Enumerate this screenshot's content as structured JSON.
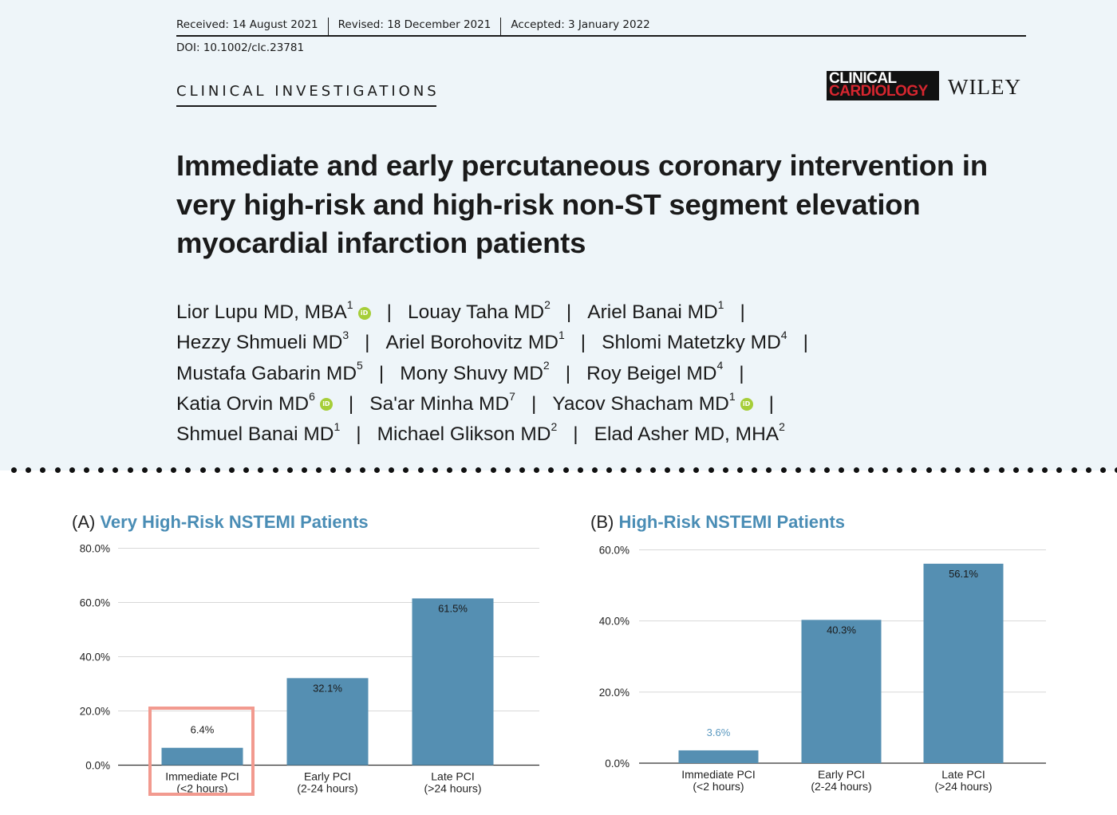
{
  "header": {
    "received": "Received: 14 August 2021",
    "revised": "Revised: 18 December 2021",
    "accepted": "Accepted: 3 January 2022",
    "doi": "DOI: 10.1002/clc.23781",
    "section": "CLINICAL INVESTIGATIONS",
    "logo_line1": "CLINICAL",
    "logo_line2": "CARDIOLOGY",
    "publisher": "WILEY"
  },
  "article": {
    "title": "Immediate and early percutaneous coronary intervention in very high-risk and high-risk non-ST segment elevation myocardial infarction patients",
    "author_rows": [
      [
        {
          "name": "Lior Lupu MD, MBA",
          "sup": "1",
          "orcid": true
        },
        {
          "name": "Louay Taha MD",
          "sup": "2",
          "orcid": false
        },
        {
          "name": "Ariel Banai MD",
          "sup": "1",
          "orcid": false
        }
      ],
      [
        {
          "name": "Hezzy Shmueli MD",
          "sup": "3",
          "orcid": false
        },
        {
          "name": "Ariel Borohovitz MD",
          "sup": "1",
          "orcid": false
        },
        {
          "name": "Shlomi Matetzky MD",
          "sup": "4",
          "orcid": false
        }
      ],
      [
        {
          "name": "Mustafa Gabarin MD",
          "sup": "5",
          "orcid": false
        },
        {
          "name": "Mony Shuvy MD",
          "sup": "2",
          "orcid": false
        },
        {
          "name": "Roy Beigel MD",
          "sup": "4",
          "orcid": false
        }
      ],
      [
        {
          "name": "Katia Orvin MD",
          "sup": "6",
          "orcid": true
        },
        {
          "name": "Sa'ar Minha MD",
          "sup": "7",
          "orcid": false
        },
        {
          "name": "Yacov Shacham MD",
          "sup": "1",
          "orcid": true
        }
      ],
      [
        {
          "name": "Shmuel Banai MD",
          "sup": "1",
          "orcid": false
        },
        {
          "name": "Michael Glikson MD",
          "sup": "2",
          "orcid": false
        },
        {
          "name": "Elad Asher MD, MHA",
          "sup": "2",
          "orcid": false
        }
      ]
    ],
    "separator": "|",
    "orcid_text": "iD"
  },
  "chart_data": [
    {
      "type": "bar",
      "panel": "(A)",
      "title": "Very High-Risk NSTEMI Patients",
      "categories": [
        [
          "Immediate PCI",
          "(<2 hours)"
        ],
        [
          "Early PCI",
          "(2-24 hours)"
        ],
        [
          "Late PCI",
          "(>24 hours)"
        ]
      ],
      "values": [
        6.4,
        32.1,
        61.5
      ],
      "value_labels": [
        "6.4%",
        "32.1%",
        "61.5%"
      ],
      "yticks": [
        "0.0%",
        "20.0%",
        "40.0%",
        "60.0%",
        "80.0%"
      ],
      "ylim": [
        0,
        80
      ],
      "color": "#558fb2",
      "highlighted_category": "Immediate PCI"
    },
    {
      "type": "bar",
      "panel": "(B)",
      "title": "High-Risk NSTEMI Patients",
      "categories": [
        [
          "Immediate PCI",
          "(<2 hours)"
        ],
        [
          "Early PCI",
          "(2-24 hours)"
        ],
        [
          "Late PCI",
          "(>24 hours)"
        ]
      ],
      "values": [
        3.6,
        40.3,
        56.1
      ],
      "value_labels": [
        "3.6%",
        "40.3%",
        "56.1%"
      ],
      "yticks": [
        "0.0%",
        "20.0%",
        "40.0%",
        "60.0%"
      ],
      "ylim": [
        0,
        60
      ],
      "color": "#558fb2"
    }
  ]
}
